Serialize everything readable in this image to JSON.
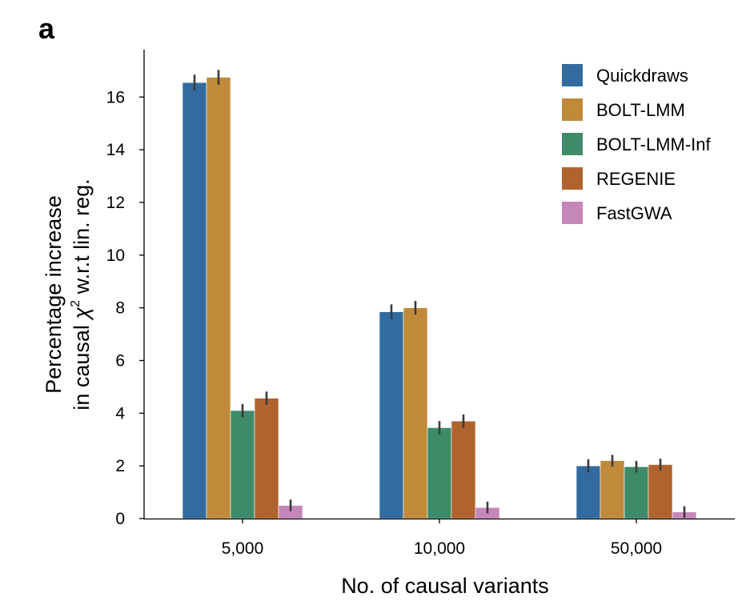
{
  "panel_label": "a",
  "chart_data": {
    "type": "bar",
    "xlabel": "No. of causal variants",
    "ylabel_line1": "Percentage increase",
    "ylabel_line2_prefix": "in causal ",
    "ylabel_symbol": "χ",
    "ylabel_superscript": "2",
    "ylabel_line2_suffix": " w.r.t lin. reg.",
    "categories": [
      "5,000",
      "10,000",
      "50,000"
    ],
    "ylim": [
      0,
      17.8
    ],
    "yticks": [
      0,
      2,
      4,
      6,
      8,
      10,
      12,
      14,
      16
    ],
    "grid": false,
    "legend_position": "top-right",
    "series": [
      {
        "name": "Quickdraws",
        "color": "#336b9e",
        "values": [
          16.55,
          7.85,
          2.0
        ],
        "errors": [
          0.3,
          0.28,
          0.25
        ]
      },
      {
        "name": "BOLT-LMM",
        "color": "#bf8a3a",
        "values": [
          16.75,
          8.0,
          2.2
        ],
        "errors": [
          0.28,
          0.26,
          0.22
        ]
      },
      {
        "name": "BOLT-LMM-Inf",
        "color": "#3f8a69",
        "values": [
          4.1,
          3.45,
          1.97
        ],
        "errors": [
          0.25,
          0.25,
          0.22
        ]
      },
      {
        "name": "REGENIE",
        "color": "#b0632d",
        "values": [
          4.57,
          3.7,
          2.05
        ],
        "errors": [
          0.25,
          0.25,
          0.22
        ]
      },
      {
        "name": "FastGWA",
        "color": "#c586b9",
        "values": [
          0.5,
          0.42,
          0.25
        ],
        "errors": [
          0.22,
          0.22,
          0.22
        ]
      }
    ]
  }
}
